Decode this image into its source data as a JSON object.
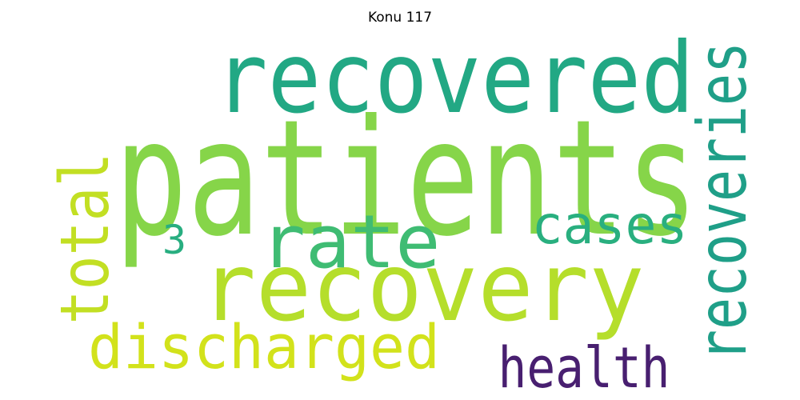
{
  "chart_data": {
    "type": "wordcloud",
    "title": "Konu 117",
    "words": [
      {
        "text": "patients",
        "color": "#86d549"
      },
      {
        "text": "recovered",
        "color": "#22a884"
      },
      {
        "text": "recovery",
        "color": "#b5de2b"
      },
      {
        "text": "rate",
        "color": "#3fbc73"
      },
      {
        "text": "recoveries",
        "color": "#1f9f88"
      },
      {
        "text": "total",
        "color": "#c2df23"
      },
      {
        "text": "cases",
        "color": "#29af7f"
      },
      {
        "text": "discharged",
        "color": "#d2e21b"
      },
      {
        "text": "health",
        "color": "#481f70"
      },
      {
        "text": "3",
        "color": "#28ae80"
      }
    ]
  }
}
